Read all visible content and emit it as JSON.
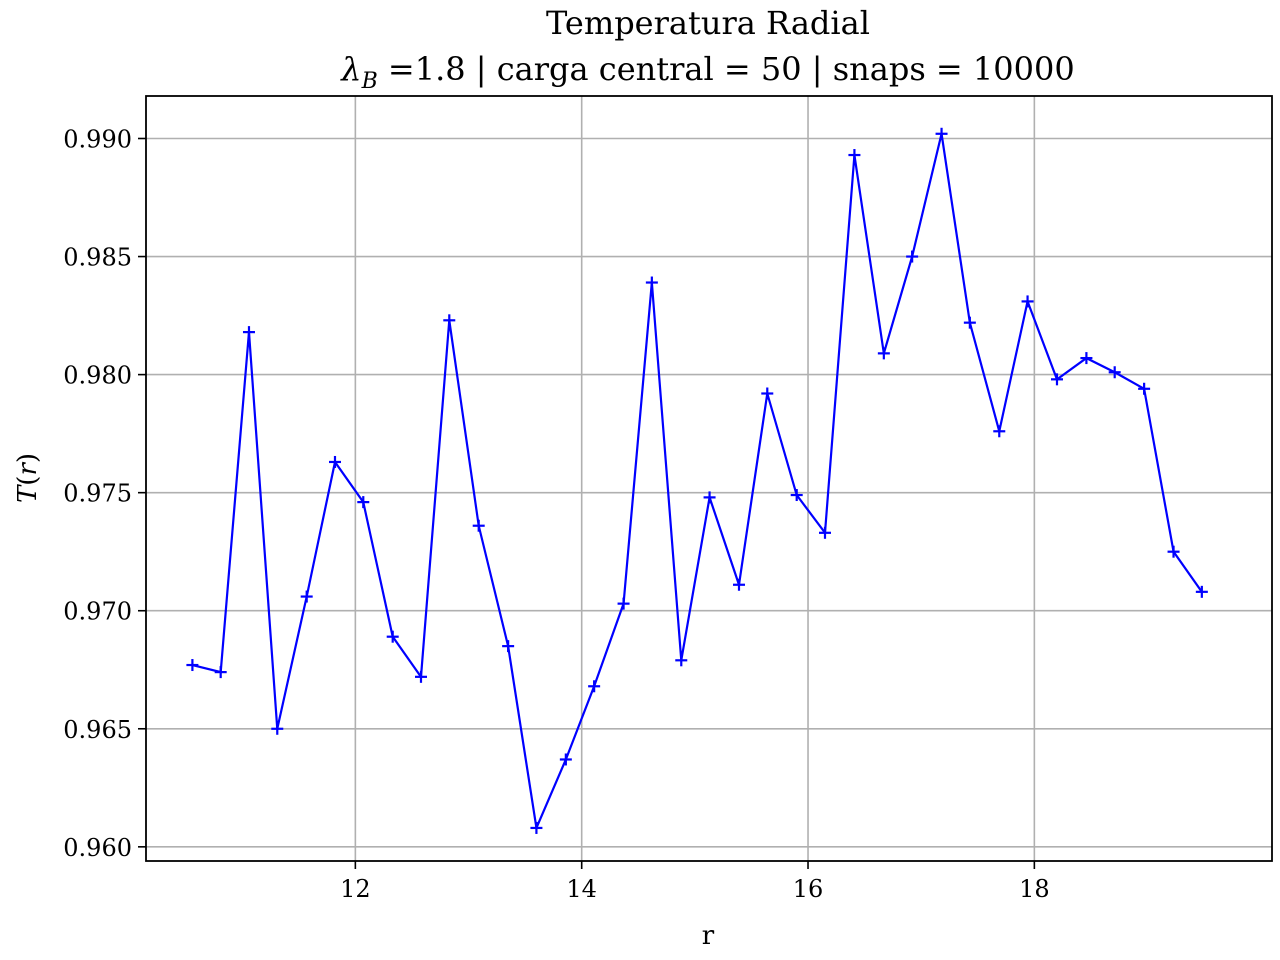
{
  "chart_data": {
    "type": "line",
    "title": "Temperatura Radial",
    "subtitle": "λB =1.8 | carga central = 50 | snaps = 10000",
    "subtitle_parts": {
      "symbol": "λ",
      "subscript": "B",
      "rest": " =1.8 | carga central = 50 | snaps = 10000"
    },
    "xlabel": "r",
    "ylabel": "T(r)",
    "ylabel_parts": {
      "var": "T",
      "open": "(",
      "arg": "r",
      "close": ")"
    },
    "xlim": [
      10.15,
      20.1
    ],
    "ylim": [
      0.9594,
      0.9918
    ],
    "x_ticks": [
      12,
      14,
      16,
      18
    ],
    "y_ticks": [
      0.96,
      0.965,
      0.97,
      0.975,
      0.98,
      0.985,
      0.99
    ],
    "y_tick_labels": [
      "0.960",
      "0.965",
      "0.970",
      "0.975",
      "0.980",
      "0.985",
      "0.990"
    ],
    "grid": true,
    "color": "#0000ff",
    "marker": "plus",
    "series": [
      {
        "x": [
          10.56,
          10.81,
          11.06,
          11.31,
          11.57,
          11.82,
          12.07,
          12.33,
          12.58,
          12.83,
          13.09,
          13.35,
          13.6,
          13.86,
          14.11,
          14.37,
          14.62,
          14.88,
          15.13,
          15.39,
          15.64,
          15.9,
          16.15,
          16.41,
          16.67,
          16.92,
          17.18,
          17.43,
          17.69,
          17.94,
          18.2,
          18.46,
          18.71,
          18.97,
          19.23,
          19.48
        ],
        "values": [
          0.9677,
          0.9674,
          0.9818,
          0.965,
          0.9706,
          0.9763,
          0.9746,
          0.9689,
          0.9672,
          0.9823,
          0.9736,
          0.9685,
          0.9608,
          0.9637,
          0.9668,
          0.9703,
          0.9839,
          0.9679,
          0.9748,
          0.9711,
          0.9792,
          0.9749,
          0.9733,
          0.9893,
          0.9809,
          0.985,
          0.9902,
          0.9822,
          0.9776,
          0.9831,
          0.9798,
          0.9807,
          0.9801,
          0.9794,
          0.9725,
          0.9708
        ]
      }
    ]
  }
}
